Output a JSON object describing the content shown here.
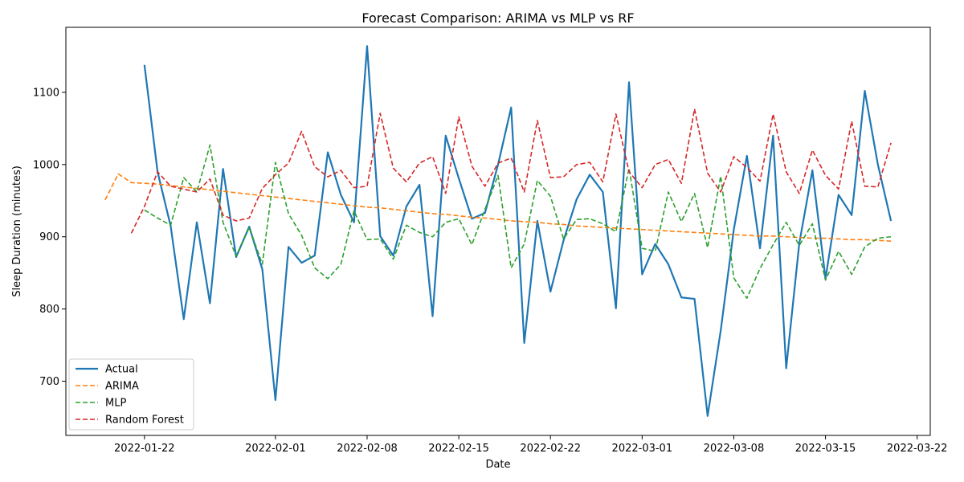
{
  "chart_data": {
    "type": "line",
    "title": "Forecast Comparison: ARIMA vs MLP vs RF",
    "xlabel": "Date",
    "ylabel": "Sleep Duration (minutes)",
    "x_start": "2022-01-19",
    "xlim": [
      "2022-01-16",
      "2022-03-23"
    ],
    "ylim": [
      625,
      1190
    ],
    "x_ticks": [
      "2022-01-22",
      "2022-02-01",
      "2022-02-08",
      "2022-02-15",
      "2022-02-22",
      "2022-03-01",
      "2022-03-08",
      "2022-03-15",
      "2022-03-22"
    ],
    "y_ticks": [
      700,
      800,
      900,
      1000,
      1100
    ],
    "legend_position": "lower-left",
    "grid": false,
    "series": [
      {
        "name": "Actual",
        "color": "#1f77b4",
        "style": "solid",
        "start_date": "2022-01-22",
        "values": [
          1138,
          990,
          915,
          786,
          920,
          808,
          994,
          872,
          914,
          855,
          674,
          886,
          864,
          874,
          1017,
          958,
          920,
          1164,
          901,
          874,
          942,
          972,
          790,
          1040,
          981,
          925,
          933,
          1000,
          1079,
          753,
          922,
          824,
          895,
          952,
          986,
          962,
          801,
          1114,
          848,
          890,
          862,
          816,
          814,
          652,
          770,
          910,
          1012,
          884,
          1040,
          718,
          891,
          992,
          842,
          958,
          930,
          1102,
          1000,
          922
        ]
      },
      {
        "name": "ARIMA",
        "color": "#ff7f0e",
        "style": "dashed",
        "start_date": "2022-01-19",
        "values": [
          951,
          987,
          975,
          974,
          973,
          971,
          969,
          967,
          965,
          963,
          961,
          959,
          957,
          955,
          953,
          951,
          949,
          947,
          945,
          943,
          941,
          940,
          938,
          936,
          934,
          932,
          931,
          929,
          927,
          926,
          924,
          922,
          921,
          920,
          918,
          917,
          915,
          914,
          913,
          912,
          911,
          910,
          909,
          908,
          907,
          906,
          905,
          904,
          903,
          902,
          901,
          901,
          900,
          899,
          898,
          898,
          897,
          896,
          896,
          895,
          894
        ]
      },
      {
        "name": "MLP",
        "color": "#2ca02c",
        "style": "dashed",
        "start_date": "2022-01-22",
        "values": [
          937,
          926,
          916,
          982,
          962,
          1027,
          920,
          873,
          913,
          862,
          1003,
          932,
          902,
          857,
          842,
          862,
          936,
          896,
          897,
          869,
          916,
          906,
          900,
          920,
          925,
          889,
          938,
          985,
          857,
          890,
          978,
          956,
          897,
          924,
          925,
          918,
          907,
          995,
          884,
          880,
          962,
          921,
          960,
          885,
          984,
          843,
          815,
          856,
          889,
          920,
          888,
          918,
          840,
          880,
          848,
          886,
          898,
          900
        ]
      },
      {
        "name": "Random Forest",
        "color": "#d62728",
        "style": "dashed",
        "start_date": "2022-01-21",
        "values": [
          905,
          942,
          990,
          970,
          966,
          962,
          980,
          930,
          922,
          926,
          967,
          986,
          1002,
          1046,
          997,
          983,
          992,
          968,
          970,
          1071,
          995,
          976,
          1002,
          1011,
          960,
          1066,
          998,
          970,
          1002,
          1009,
          962,
          1061,
          982,
          983,
          1000,
          1003,
          976,
          1070,
          990,
          968,
          1000,
          1007,
          974,
          1077,
          988,
          962,
          1011,
          996,
          977,
          1070,
          990,
          960,
          1020,
          985,
          966,
          1060,
          970,
          969,
          1030
        ]
      }
    ]
  }
}
